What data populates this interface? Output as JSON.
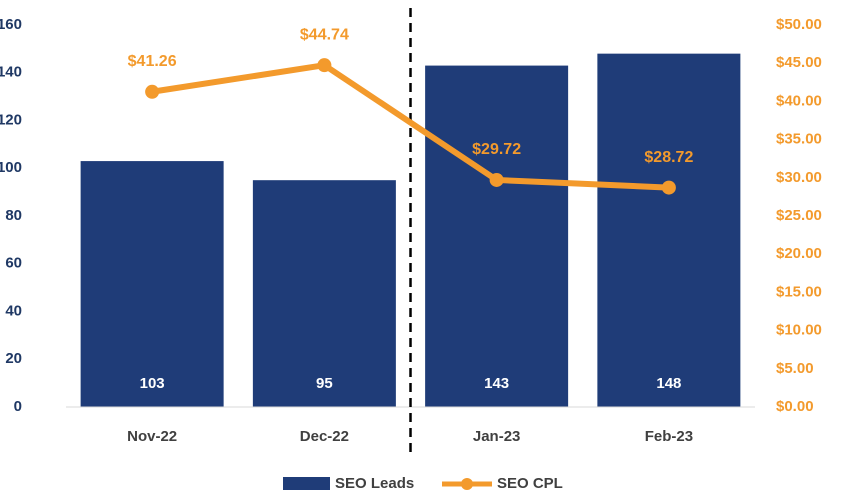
{
  "chart_data": {
    "type": "bar-line",
    "categories": [
      "Nov-22",
      "Dec-22",
      "Jan-23",
      "Feb-23"
    ],
    "series": [
      {
        "name": "SEO Leads",
        "type": "bar",
        "color": "#1f3c78",
        "values": [
          103,
          95,
          143,
          148
        ]
      },
      {
        "name": "SEO CPL",
        "type": "line",
        "axis": "y2",
        "color": "#f39a2c",
        "values": [
          41.26,
          44.74,
          29.72,
          28.72
        ],
        "value_labels": [
          "$41.26",
          "$44.74",
          "$29.72",
          "$28.72"
        ]
      }
    ],
    "ylim": [
      0,
      160
    ],
    "yticks": [
      0,
      20,
      40,
      60,
      80,
      100,
      120,
      140,
      160
    ],
    "y2lim": [
      0,
      50
    ],
    "y2ticks": [
      {
        "value": 0,
        "label": "$0.00"
      },
      {
        "value": 5,
        "label": "$5.00"
      },
      {
        "value": 10,
        "label": "$10.00"
      },
      {
        "value": 15,
        "label": "$15.00"
      },
      {
        "value": 20,
        "label": "$20.00"
      },
      {
        "value": 25,
        "label": "$25.00"
      },
      {
        "value": 30,
        "label": "$30.00"
      },
      {
        "value": 35,
        "label": "$35.00"
      },
      {
        "value": 40,
        "label": "$40.00"
      },
      {
        "value": 45,
        "label": "$45.00"
      },
      {
        "value": 50,
        "label": "$50.00"
      }
    ],
    "legend": "bottom",
    "grid": false
  }
}
